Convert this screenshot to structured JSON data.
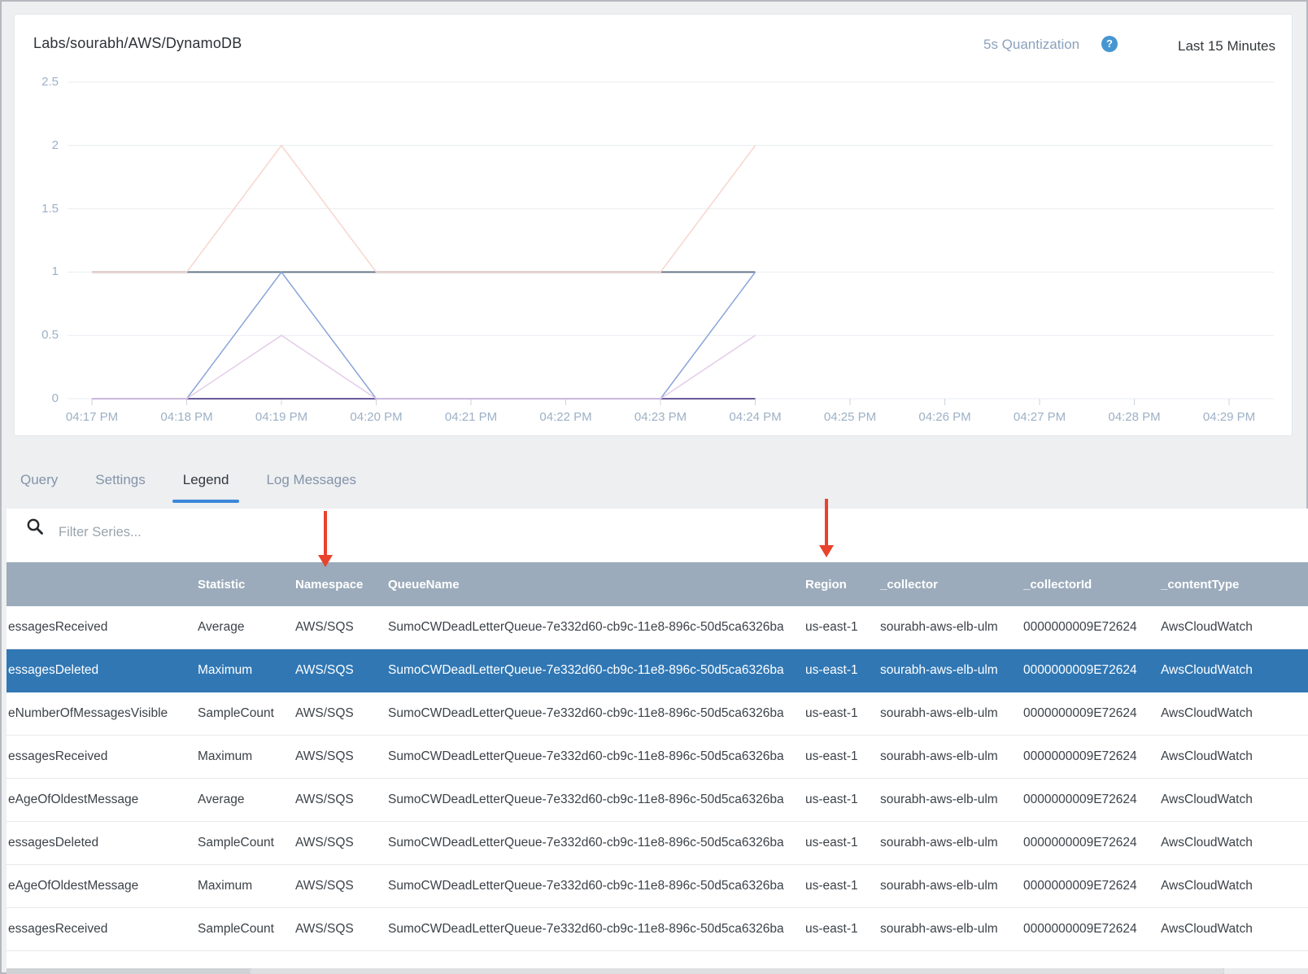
{
  "chart_card": {
    "title": "Labs/sourabh/AWS/DynamoDB",
    "quantization_label": "5s Quantization",
    "help_icon": "?",
    "time_range_label": "Last 15 Minutes"
  },
  "chart_data": {
    "type": "line",
    "title": "Labs/sourabh/AWS/DynamoDB",
    "x_tick_labels": [
      "04:17 PM",
      "04:18 PM",
      "04:19 PM",
      "04:20 PM",
      "04:21 PM",
      "04:22 PM",
      "04:23 PM",
      "04:24 PM",
      "04:25 PM",
      "04:26 PM",
      "04:27 PM",
      "04:28 PM",
      "04:29 PM"
    ],
    "y_ticks": [
      0,
      0.5,
      1,
      1.5,
      2,
      2.5
    ],
    "ylim": [
      0,
      2.5
    ],
    "grid": true,
    "note": "series points are [minutes_after_04:17_PM, value]; data ends at 04:24 PM",
    "series": [
      {
        "name": "constant-one-line",
        "color": "#69798a",
        "width": 2,
        "points": [
          [
            0,
            1
          ],
          [
            7,
            1
          ]
        ]
      },
      {
        "name": "constant-zero-line",
        "color": "#6b5b9b",
        "width": 2,
        "points": [
          [
            0,
            0
          ],
          [
            7,
            0
          ]
        ]
      },
      {
        "name": "salmon-line-peaks-2",
        "color": "#f8d5cc",
        "width": 1.5,
        "points": [
          [
            0,
            1
          ],
          [
            1,
            1
          ],
          [
            2,
            2
          ],
          [
            3,
            1
          ],
          [
            6,
            1
          ],
          [
            7,
            2
          ]
        ]
      },
      {
        "name": "blue-line-peaks-1",
        "color": "#8ba4d8",
        "width": 1.5,
        "points": [
          [
            0,
            0
          ],
          [
            1,
            0
          ],
          [
            2,
            1
          ],
          [
            3,
            0
          ],
          [
            6,
            0
          ],
          [
            7,
            1
          ]
        ]
      },
      {
        "name": "lavender-line-peaks-half",
        "color": "#e5ccea",
        "width": 1.5,
        "points": [
          [
            0,
            0
          ],
          [
            1,
            0
          ],
          [
            2,
            0.5
          ],
          [
            3,
            0
          ],
          [
            6,
            0
          ],
          [
            7,
            0.5
          ]
        ]
      }
    ]
  },
  "tabs": {
    "items": [
      "Query",
      "Settings",
      "Legend",
      "Log Messages"
    ],
    "active_index": 2
  },
  "filter": {
    "placeholder": "Filter Series..."
  },
  "legend_table": {
    "columns": [
      "",
      "Statistic",
      "Namespace",
      "QueueName",
      "Region",
      "_collector",
      "_collectorId",
      "_contentType"
    ],
    "selected_row_index": 1,
    "rows": [
      [
        "essagesReceived",
        "Average",
        "AWS/SQS",
        "SumoCWDeadLetterQueue-7e332d60-cb9c-11e8-896c-50d5ca6326ba",
        "us-east-1",
        "sourabh-aws-elb-ulm",
        "0000000009E72624",
        "AwsCloudWatch"
      ],
      [
        "essagesDeleted",
        "Maximum",
        "AWS/SQS",
        "SumoCWDeadLetterQueue-7e332d60-cb9c-11e8-896c-50d5ca6326ba",
        "us-east-1",
        "sourabh-aws-elb-ulm",
        "0000000009E72624",
        "AwsCloudWatch"
      ],
      [
        "eNumberOfMessagesVisible",
        "SampleCount",
        "AWS/SQS",
        "SumoCWDeadLetterQueue-7e332d60-cb9c-11e8-896c-50d5ca6326ba",
        "us-east-1",
        "sourabh-aws-elb-ulm",
        "0000000009E72624",
        "AwsCloudWatch"
      ],
      [
        "essagesReceived",
        "Maximum",
        "AWS/SQS",
        "SumoCWDeadLetterQueue-7e332d60-cb9c-11e8-896c-50d5ca6326ba",
        "us-east-1",
        "sourabh-aws-elb-ulm",
        "0000000009E72624",
        "AwsCloudWatch"
      ],
      [
        "eAgeOfOldestMessage",
        "Average",
        "AWS/SQS",
        "SumoCWDeadLetterQueue-7e332d60-cb9c-11e8-896c-50d5ca6326ba",
        "us-east-1",
        "sourabh-aws-elb-ulm",
        "0000000009E72624",
        "AwsCloudWatch"
      ],
      [
        "essagesDeleted",
        "SampleCount",
        "AWS/SQS",
        "SumoCWDeadLetterQueue-7e332d60-cb9c-11e8-896c-50d5ca6326ba",
        "us-east-1",
        "sourabh-aws-elb-ulm",
        "0000000009E72624",
        "AwsCloudWatch"
      ],
      [
        "eAgeOfOldestMessage",
        "Maximum",
        "AWS/SQS",
        "SumoCWDeadLetterQueue-7e332d60-cb9c-11e8-896c-50d5ca6326ba",
        "us-east-1",
        "sourabh-aws-elb-ulm",
        "0000000009E72624",
        "AwsCloudWatch"
      ],
      [
        "essagesReceived",
        "SampleCount",
        "AWS/SQS",
        "SumoCWDeadLetterQueue-7e332d60-cb9c-11e8-896c-50d5ca6326ba",
        "us-east-1",
        "sourabh-aws-elb-ulm",
        "0000000009E72624",
        "AwsCloudWatch"
      ]
    ]
  },
  "annotations": {
    "arrow_color": "#e8432d",
    "arrows": [
      {
        "points_to": "Namespace column header"
      },
      {
        "points_to": "Region column header"
      }
    ]
  },
  "colors": {
    "header_bar": "#9babbb",
    "selected_row": "#3077b4",
    "tab_active_underline": "#3c87d9",
    "axis_label": "#9db0c6",
    "help_icon_bg": "#4796d2"
  }
}
